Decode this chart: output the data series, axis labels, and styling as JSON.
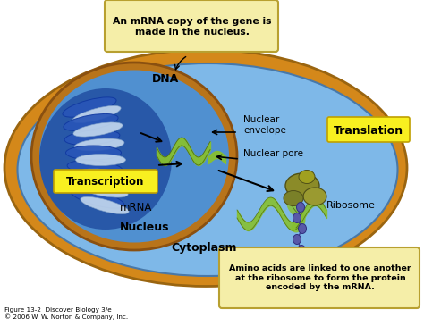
{
  "caption_top": "An mRNA copy of the gene is\nmade in the nucleus.",
  "caption_bottom": "Amino acids are linked to one another\nat the ribosome to form the protein\nencoded by the mRNA.",
  "label_dna": "DNA",
  "label_transcription": "Transcription",
  "label_mrna": "mRNA",
  "label_nucleus": "Nucleus",
  "label_cytoplasm": "Cytoplasm",
  "label_nuclear_envelope": "Nuclear\nenvelope",
  "label_nuclear_pore": "Nuclear pore",
  "label_translation": "Translation",
  "label_ribosome": "Ribosome",
  "label_figure": "Figure 13-2  Discover Biology 3/e\n© 2006 W. W. Norton & Company, Inc.",
  "color_cell_outer": "#D4881A",
  "color_cell_inner_bg": "#7EB8E8",
  "color_nucleus_outer": "#B8741A",
  "color_nucleus_inner": "#5090D0",
  "color_nucleus_deep": "#2858A8",
  "color_mrna": "#88C030",
  "color_dna_blue": "#2855B8",
  "color_dna_white": "#C8DCF0",
  "color_callout_fill": "#F5EEA8",
  "color_callout_stroke": "#B8A030",
  "color_translation_fill": "#F8F020",
  "color_ribosome": "#8B8B28",
  "color_protein_chain": "#5858A8",
  "bg_color": "#FFFFFF"
}
